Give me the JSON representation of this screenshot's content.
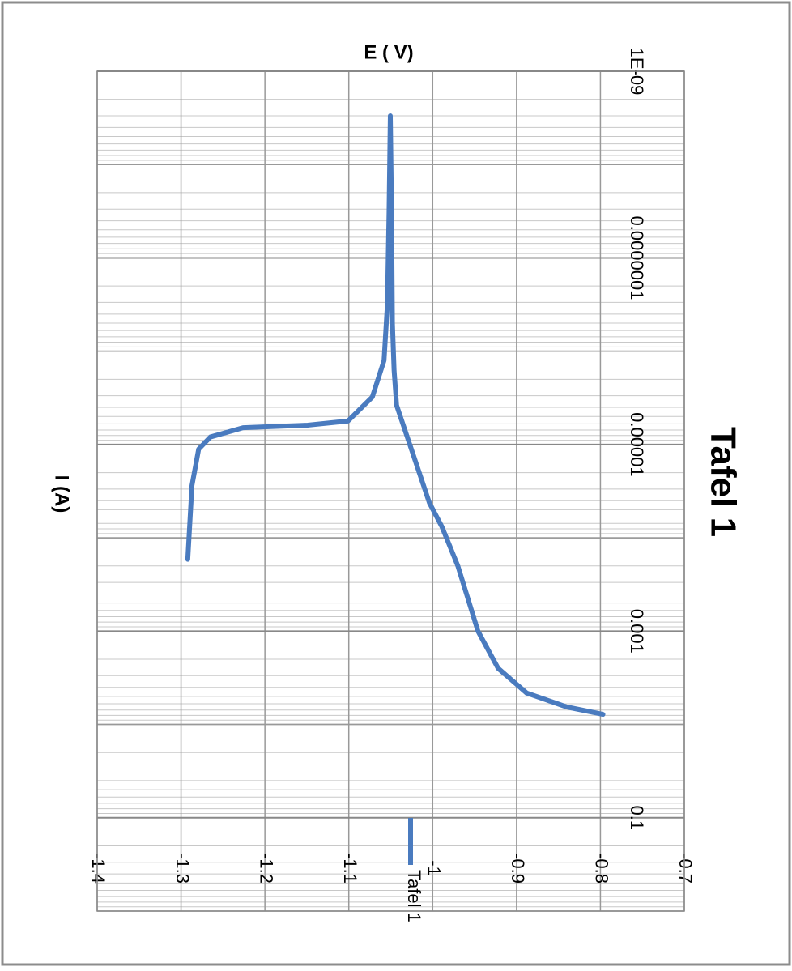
{
  "chart_data": {
    "type": "line",
    "title": "Tafel 1",
    "x_label": "I (A)",
    "y_label": "E ( V)",
    "x_scale": "log",
    "x": [
      0.00017,
      2.75e-05,
      1.12e-05,
      8.3e-06,
      6.6e-06,
      6.2e-06,
      5.6e-06,
      3.1e-06,
      1.26e-06,
      3.2e-07,
      3.2e-08,
      3e-09,
      3.2e-08,
      5e-07,
      1.6e-06,
      3.8e-06,
      1.26e-05,
      4.2e-05,
      7.6e-05,
      0.0002,
      0.001,
      0.0025,
      0.0046,
      0.0065,
      0.0078
    ],
    "series": [
      {
        "name": "Tafel 1",
        "color": "#4a7bbf",
        "values": [
          -1.292,
          -1.287,
          -1.279,
          -1.265,
          -1.226,
          -1.149,
          -1.101,
          -1.072,
          -1.058,
          -1.054,
          -1.052,
          -1.0505,
          -1.049,
          -1.048,
          -1.046,
          -1.043,
          -1.0235,
          -1.004,
          -0.989,
          -0.97,
          -0.946,
          -0.922,
          -0.888,
          -0.84,
          -0.797
        ]
      }
    ],
    "xlim": [
      1e-09,
      1
    ],
    "xticks": [
      {
        "value": 1e-09,
        "label": "1E-09"
      },
      {
        "value": 1e-07,
        "label": "0.0000001"
      },
      1e-05,
      0.001,
      0.1
    ],
    "ylim": [
      -1.4,
      -0.7
    ],
    "yticks": [
      -1.4,
      -1.3,
      -1.2,
      -1.1,
      -1,
      -0.9,
      -0.8,
      -0.7
    ],
    "grid": true
  }
}
